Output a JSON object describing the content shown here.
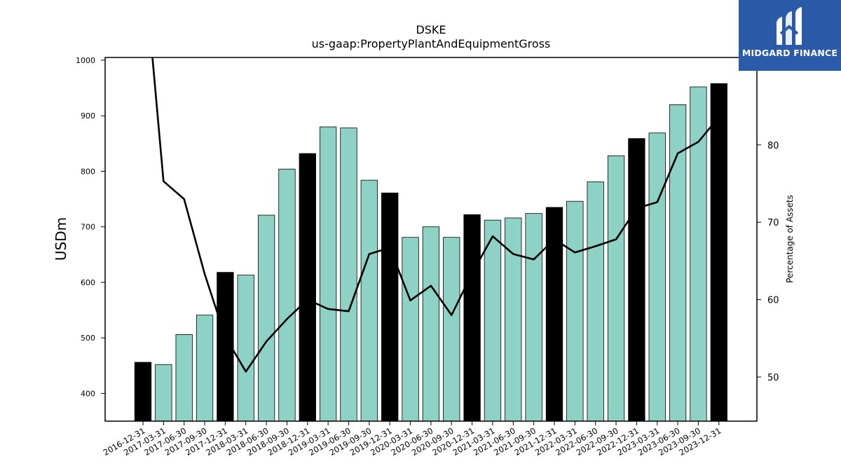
{
  "brand": {
    "name": "MIDGARD FINANCE",
    "color": "#2a5aa8"
  },
  "chart_data": {
    "type": "bar",
    "title": "DSKE",
    "subtitle": "us-gaap:PropertyPlantAndEquipmentGross",
    "ylabel": "USDm",
    "y2label": "Percentage of Assets",
    "ylim": [
      350,
      1005
    ],
    "y2lim": [
      44.3,
      91.3
    ],
    "yticks": [
      400,
      500,
      600,
      700,
      800,
      900,
      1000
    ],
    "y2ticks": [
      50,
      60,
      70,
      80
    ],
    "grid": false,
    "categories": [
      "2016-12-31",
      "2017-03-31",
      "2017-06-30",
      "2017-09-30",
      "2017-12-31",
      "2018-03-31",
      "2018-06-30",
      "2018-09-30",
      "2018-12-31",
      "2019-03-31",
      "2019-06-30",
      "2019-09-30",
      "2019-12-31",
      "2020-03-31",
      "2020-06-30",
      "2020-09-30",
      "2020-12-31",
      "2021-03-31",
      "2021-06-30",
      "2021-09-30",
      "2021-12-31",
      "2022-03-31",
      "2022-06-30",
      "2022-09-30",
      "2022-12-31",
      "2023-03-31",
      "2023-06-30",
      "2023-09-30",
      "2023-12-31"
    ],
    "series": [
      {
        "type": "bar",
        "axis": "left",
        "values": [
          456,
          452,
          506,
          541,
          618,
          613,
          721,
          804,
          832,
          880,
          878,
          784,
          761,
          681,
          700,
          681,
          722,
          712,
          716,
          724,
          735,
          746,
          781,
          828,
          859,
          869,
          920,
          952,
          958
        ],
        "colors": [
          "#000000",
          "#8ed2c6",
          "#8ed2c6",
          "#8ed2c6",
          "#000000",
          "#8ed2c6",
          "#8ed2c6",
          "#8ed2c6",
          "#000000",
          "#8ed2c6",
          "#8ed2c6",
          "#8ed2c6",
          "#000000",
          "#8ed2c6",
          "#8ed2c6",
          "#8ed2c6",
          "#000000",
          "#8ed2c6",
          "#8ed2c6",
          "#8ed2c6",
          "#000000",
          "#8ed2c6",
          "#8ed2c6",
          "#8ed2c6",
          "#000000",
          "#8ed2c6",
          "#8ed2c6",
          "#8ed2c6",
          "#000000"
        ]
      },
      {
        "type": "line",
        "axis": "right",
        "color": "#000000",
        "values": [
          105.0,
          75.3,
          73.0,
          63.3,
          55.2,
          50.7,
          54.6,
          57.5,
          60.0,
          58.8,
          58.5,
          65.9,
          66.7,
          59.9,
          61.8,
          58.0,
          63.4,
          68.2,
          65.9,
          65.2,
          67.8,
          66.1,
          66.9,
          67.8,
          71.8,
          72.6,
          78.9,
          80.4,
          83.6
        ]
      }
    ]
  }
}
